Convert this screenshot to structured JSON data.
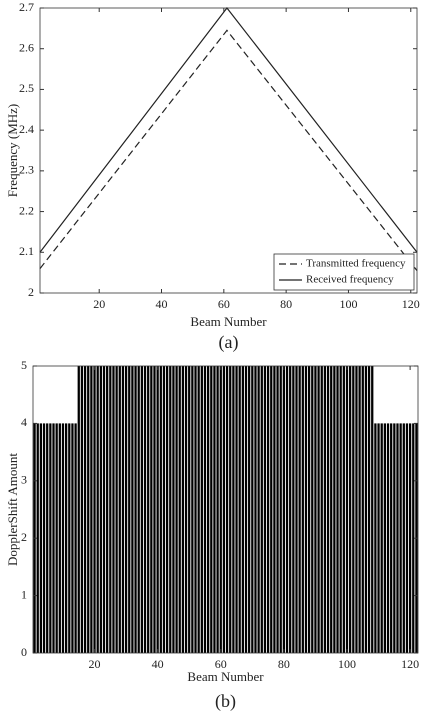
{
  "chart_data": [
    {
      "type": "line",
      "x_label": "Beam Number",
      "y_label": "Frequency (MHz)",
      "caption": "(a)",
      "x": [
        1,
        61,
        122
      ],
      "series": [
        {
          "name": "Transmitted frequency",
          "color": "#222222",
          "style": "dashed",
          "values": [
            2.06,
            2.645,
            2.055
          ]
        },
        {
          "name": "Received frequency",
          "color": "#222222",
          "style": "solid",
          "values": [
            2.1,
            2.7,
            2.1
          ]
        }
      ],
      "xlim": [
        1,
        122
      ],
      "xticks": [
        20,
        40,
        60,
        80,
        100,
        120
      ],
      "ylim": [
        2,
        2.7
      ],
      "yticks": [
        2,
        2.1,
        2.2,
        2.3,
        2.4,
        2.5,
        2.6,
        2.7
      ],
      "legend": "lower right"
    },
    {
      "type": "bar",
      "x_label": "Beam Number",
      "y_label": "DopplerShift Amount",
      "caption": "(b)",
      "color": "#000000",
      "x": [
        1,
        2,
        3,
        4,
        5,
        6,
        7,
        8,
        9,
        10,
        11,
        12,
        13,
        14,
        15,
        16,
        17,
        18,
        19,
        20,
        21,
        22,
        23,
        24,
        25,
        26,
        27,
        28,
        29,
        30,
        31,
        32,
        33,
        34,
        35,
        36,
        37,
        38,
        39,
        40,
        41,
        42,
        43,
        44,
        45,
        46,
        47,
        48,
        49,
        50,
        51,
        52,
        53,
        54,
        55,
        56,
        57,
        58,
        59,
        60,
        61,
        62,
        63,
        64,
        65,
        66,
        67,
        68,
        69,
        70,
        71,
        72,
        73,
        74,
        75,
        76,
        77,
        78,
        79,
        80,
        81,
        82,
        83,
        84,
        85,
        86,
        87,
        88,
        89,
        90,
        91,
        92,
        93,
        94,
        95,
        96,
        97,
        98,
        99,
        100,
        101,
        102,
        103,
        104,
        105,
        106,
        107,
        108,
        109,
        110,
        111,
        112,
        113,
        114,
        115,
        116,
        117,
        118,
        119,
        120,
        121,
        122
      ],
      "values": [
        4,
        4,
        4,
        4,
        4,
        4,
        4,
        4,
        4,
        4,
        4,
        4,
        4,
        4,
        5,
        5,
        5,
        5,
        5,
        5,
        5,
        5,
        5,
        5,
        5,
        5,
        5,
        5,
        5,
        5,
        5,
        5,
        5,
        5,
        5,
        5,
        5,
        5,
        5,
        5,
        5,
        5,
        5,
        5,
        5,
        5,
        5,
        5,
        5,
        5,
        5,
        5,
        5,
        5,
        5,
        5,
        5,
        5,
        5,
        5,
        5,
        5,
        5,
        5,
        5,
        5,
        5,
        5,
        5,
        5,
        5,
        5,
        5,
        5,
        5,
        5,
        5,
        5,
        5,
        5,
        5,
        5,
        5,
        5,
        5,
        5,
        5,
        5,
        5,
        5,
        5,
        5,
        5,
        5,
        5,
        5,
        5,
        5,
        5,
        5,
        5,
        5,
        5,
        5,
        5,
        5,
        5,
        5,
        4,
        4,
        4,
        4,
        4,
        4,
        4,
        4,
        4,
        4,
        4,
        4,
        4,
        4
      ],
      "xlim": [
        0.5,
        122.5
      ],
      "xticks": [
        20,
        40,
        60,
        80,
        100,
        120
      ],
      "ylim": [
        0,
        5
      ],
      "yticks": [
        0,
        1,
        2,
        3,
        4,
        5
      ]
    }
  ]
}
